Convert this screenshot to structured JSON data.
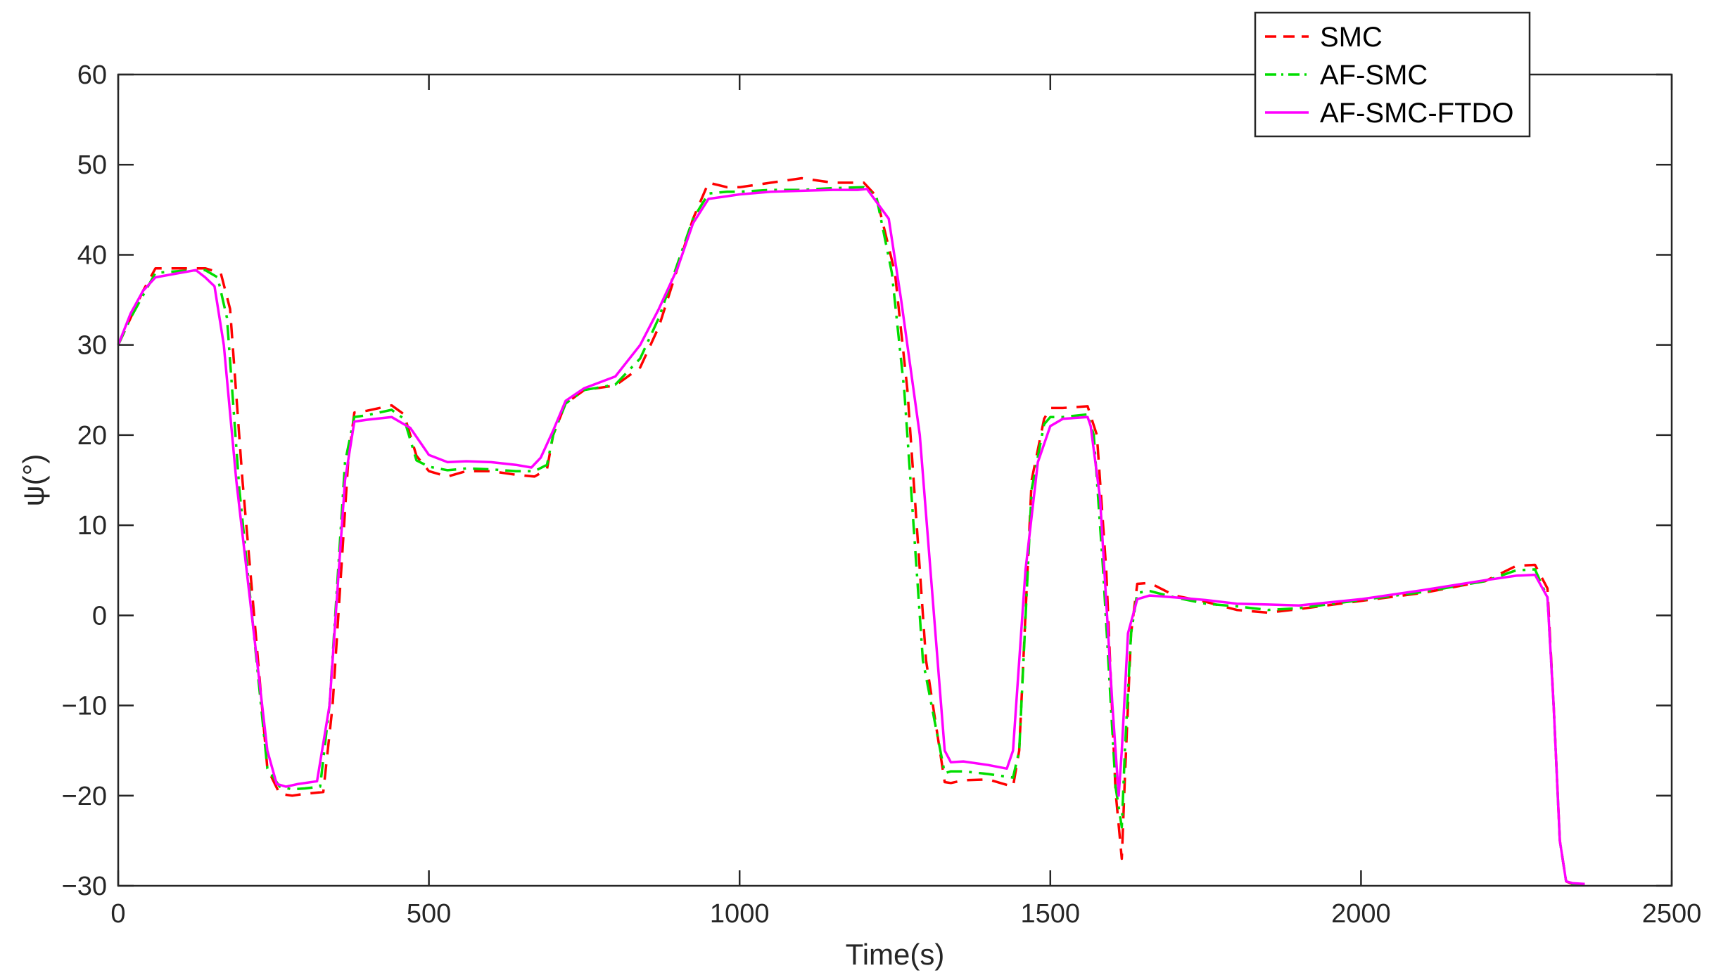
{
  "chart_data": {
    "type": "line",
    "title": "",
    "xlabel": "Time(s)",
    "ylabel": "ψ(°)",
    "xlim": [
      0,
      2500
    ],
    "ylim": [
      -30,
      60
    ],
    "xticks": [
      0,
      500,
      1000,
      1500,
      2000,
      2500
    ],
    "yticks": [
      -30,
      -20,
      -10,
      0,
      10,
      20,
      30,
      40,
      50,
      60
    ],
    "xtick_labels": [
      "0",
      "500",
      "1000",
      "1500",
      "2000",
      "2500"
    ],
    "ytick_labels": [
      "−30",
      "−20",
      "−10",
      "0",
      "10",
      "20",
      "30",
      "40",
      "50",
      "60"
    ],
    "grid": false,
    "legend": "top-right",
    "series": [
      {
        "name": "SMC",
        "color": "#ff0000",
        "style": "dashed",
        "x": [
          0,
          20,
          40,
          60,
          100,
          140,
          165,
          180,
          200,
          240,
          260,
          280,
          300,
          330,
          345,
          370,
          380,
          400,
          440,
          460,
          480,
          500,
          530,
          560,
          600,
          640,
          670,
          690,
          700,
          720,
          750,
          800,
          840,
          870,
          900,
          925,
          950,
          980,
          1000,
          1050,
          1100,
          1150,
          1200,
          1220,
          1250,
          1270,
          1300,
          1330,
          1340,
          1360,
          1400,
          1440,
          1450,
          1470,
          1490,
          1500,
          1520,
          1560,
          1575,
          1590,
          1605,
          1615,
          1620,
          1630,
          1640,
          1660,
          1700,
          1750,
          1800,
          1850,
          1900,
          2000,
          2100,
          2200,
          2250,
          2280,
          2300,
          2310,
          2320,
          2330,
          2340,
          2360
        ],
        "y": [
          30,
          33,
          36,
          38.5,
          38.5,
          38.5,
          38,
          34,
          15,
          -17,
          -19.8,
          -20,
          -19.8,
          -19.6,
          -10,
          17,
          22.5,
          22.7,
          23.3,
          22.3,
          17.7,
          16,
          15.4,
          16,
          16,
          15.6,
          15.4,
          16.2,
          20,
          23.5,
          25,
          25.5,
          27.5,
          32,
          38.5,
          44,
          48,
          47.5,
          47.5,
          48,
          48.5,
          48,
          48,
          46.5,
          38,
          25,
          -5,
          -18.5,
          -18.6,
          -18.3,
          -18.2,
          -19,
          -15,
          15,
          21.8,
          23,
          23,
          23.2,
          20,
          5,
          -19.5,
          -27,
          -18,
          -2,
          3.5,
          3.6,
          2.2,
          1.5,
          0.6,
          0.3,
          0.7,
          1.6,
          2.5,
          3.8,
          5.5,
          5.6,
          3,
          -10,
          -25,
          -29.5,
          -29.8,
          -29.8
        ]
      },
      {
        "name": "AF-SMC",
        "color": "#00dd00",
        "style": "dashdot",
        "x": [
          0,
          20,
          40,
          60,
          100,
          140,
          160,
          175,
          195,
          240,
          260,
          280,
          300,
          325,
          340,
          365,
          380,
          400,
          440,
          460,
          480,
          500,
          530,
          560,
          600,
          640,
          670,
          690,
          700,
          720,
          750,
          800,
          840,
          870,
          900,
          925,
          950,
          980,
          1000,
          1050,
          1100,
          1150,
          1200,
          1220,
          1245,
          1265,
          1295,
          1330,
          1340,
          1360,
          1400,
          1440,
          1450,
          1470,
          1490,
          1500,
          1520,
          1560,
          1570,
          1585,
          1605,
          1615,
          1620,
          1630,
          1640,
          1660,
          1700,
          1750,
          1800,
          1850,
          1900,
          2000,
          2100,
          2200,
          2250,
          2280,
          2300,
          2310,
          2320,
          2330,
          2340,
          2360
        ],
        "y": [
          30,
          33,
          35.5,
          38,
          38.2,
          38.3,
          37.5,
          33,
          14,
          -17,
          -19,
          -19.3,
          -19.2,
          -19,
          -10,
          17,
          22,
          22.2,
          22.8,
          21.8,
          17.2,
          16.5,
          16.1,
          16.3,
          16.2,
          16,
          16,
          16.7,
          20,
          23.5,
          25,
          25.6,
          28.5,
          33,
          39,
          44,
          46.8,
          47,
          47,
          47.2,
          47.2,
          47.4,
          47.5,
          46.5,
          38,
          25,
          -5,
          -17.5,
          -17.3,
          -17.3,
          -17.6,
          -18,
          -15,
          14,
          21.2,
          22,
          22,
          22.3,
          20,
          5,
          -19,
          -23.5,
          -15,
          -2,
          2.5,
          2.7,
          2,
          1.3,
          1,
          0.6,
          0.8,
          1.7,
          2.6,
          3.8,
          5,
          5.1,
          2,
          -10,
          -25,
          -29.5,
          -29.8,
          -29.8
        ]
      },
      {
        "name": "AF-SMC-FTDO",
        "color": "#ff00ff",
        "style": "solid",
        "x": [
          0,
          20,
          40,
          60,
          100,
          125,
          140,
          155,
          170,
          190,
          240,
          255,
          270,
          290,
          320,
          340,
          365,
          380,
          400,
          440,
          470,
          500,
          530,
          560,
          600,
          640,
          665,
          680,
          700,
          720,
          750,
          800,
          840,
          870,
          900,
          925,
          950,
          980,
          1000,
          1050,
          1100,
          1150,
          1190,
          1205,
          1240,
          1260,
          1290,
          1330,
          1340,
          1360,
          1400,
          1430,
          1440,
          1460,
          1480,
          1500,
          1520,
          1560,
          1565,
          1580,
          1600,
          1610,
          1615,
          1625,
          1640,
          1660,
          1700,
          1750,
          1800,
          1850,
          1900,
          2000,
          2100,
          2200,
          2250,
          2280,
          2300,
          2310,
          2320,
          2330,
          2340,
          2360
        ],
        "y": [
          30,
          33.5,
          36,
          37.5,
          38,
          38.3,
          37.5,
          36.5,
          30,
          15,
          -15,
          -18.7,
          -19,
          -18.7,
          -18.4,
          -10,
          15,
          21.5,
          21.7,
          22,
          20.8,
          17.8,
          17,
          17.1,
          17,
          16.7,
          16.4,
          17.5,
          20.5,
          23.8,
          25.2,
          26.5,
          30,
          34,
          38.5,
          43.5,
          46.2,
          46.5,
          46.7,
          47,
          47.1,
          47.2,
          47.2,
          47.3,
          44,
          35,
          20,
          -15,
          -16.3,
          -16.2,
          -16.6,
          -17,
          -15,
          5,
          17,
          21,
          21.8,
          22,
          21,
          13,
          -10,
          -20,
          -15,
          -2,
          1.8,
          2.2,
          2,
          1.7,
          1.3,
          1.2,
          1.1,
          1.8,
          2.8,
          3.9,
          4.4,
          4.5,
          2,
          -10,
          -25,
          -29.5,
          -29.7,
          -29.8
        ]
      }
    ]
  }
}
